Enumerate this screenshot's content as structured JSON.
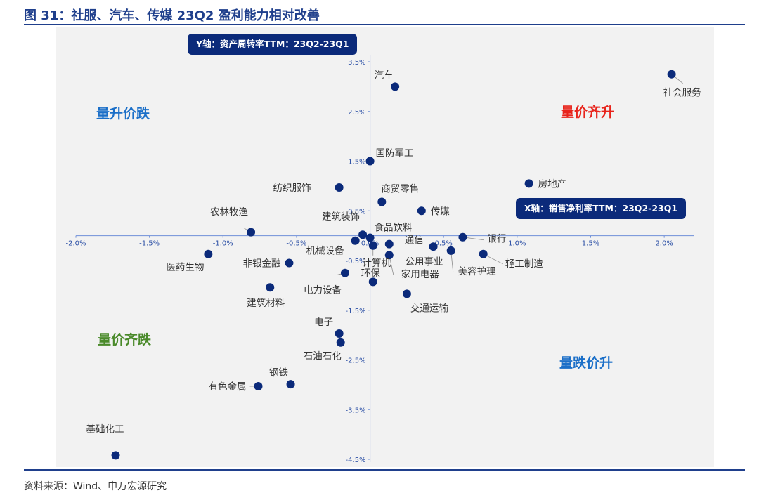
{
  "title": "图 31：社服、汽车、传媒 23Q2 盈利能力相对改善",
  "source": "资料来源：Wind、申万宏源研究",
  "colors": {
    "accent": "#1f3f8c",
    "point": "#0b2a7a",
    "axis": "#6f8fd8",
    "red": "#e8231b",
    "blue": "#1b6fc8",
    "green": "#4a8a2a"
  },
  "chart_data": {
    "type": "scatter",
    "title": "社服、汽车、传媒 23Q2 盈利能力相对改善",
    "xlabel": "X轴：销售净利率TTM：23Q2-23Q1",
    "ylabel": "Y轴：资产周转率TTM：23Q2-23Q1",
    "xlim": [
      -2.0,
      2.2
    ],
    "ylim": [
      -4.5,
      3.5
    ],
    "x_ticks": [
      "-2.0%",
      "-1.5%",
      "-1.0%",
      "-0.5%",
      "0.0%",
      "0.5%",
      "1.0%",
      "1.5%",
      "2.0%"
    ],
    "x_tick_values": [
      -2.0,
      -1.5,
      -1.0,
      -0.5,
      0.0,
      0.5,
      1.0,
      1.5,
      2.0
    ],
    "y_ticks": [
      "3.5%",
      "2.5%",
      "1.5%",
      "0.5%",
      "-0.5%",
      "-1.5%",
      "-2.5%",
      "-3.5%",
      "-4.5%"
    ],
    "y_tick_values": [
      3.5,
      2.5,
      1.5,
      0.5,
      -0.5,
      -1.5,
      -2.5,
      -3.5,
      -4.5
    ],
    "quadrants": [
      {
        "text": "量价齐升",
        "color": "#e8231b",
        "pos": "top-right"
      },
      {
        "text": "量升价跌",
        "color": "#1b6fc8",
        "pos": "top-left"
      },
      {
        "text": "量价齐跌",
        "color": "#4a8a2a",
        "pos": "bottom-left"
      },
      {
        "text": "量跌价升",
        "color": "#1b6fc8",
        "pos": "bottom-right"
      }
    ],
    "points": [
      {
        "name": "社会服务",
        "x": 2.05,
        "y": 3.25
      },
      {
        "name": "汽车",
        "x": 0.17,
        "y": 3.0
      },
      {
        "name": "国防军工",
        "x": 0.0,
        "y": 1.5
      },
      {
        "name": "房地产",
        "x": 1.08,
        "y": 1.05
      },
      {
        "name": "纺织服饰",
        "x": -0.21,
        "y": 0.97
      },
      {
        "name": "商贸零售",
        "x": 0.08,
        "y": 0.68
      },
      {
        "name": "传媒",
        "x": 0.35,
        "y": 0.5
      },
      {
        "name": "农林牧渔",
        "x": -0.81,
        "y": 0.07
      },
      {
        "name": "建筑装饰",
        "x": -0.05,
        "y": 0.02
      },
      {
        "name": "食品饮料",
        "x": 0.0,
        "y": -0.04
      },
      {
        "name": "银行",
        "x": 0.63,
        "y": -0.03
      },
      {
        "name": "机械设备",
        "x": -0.1,
        "y": -0.1
      },
      {
        "name": "通信",
        "x": 0.13,
        "y": -0.17
      },
      {
        "name": "公用事业",
        "x": 0.43,
        "y": -0.22
      },
      {
        "name": "美容护理",
        "x": 0.55,
        "y": -0.3
      },
      {
        "name": "医药生物",
        "x": -1.1,
        "y": -0.37
      },
      {
        "name": "轻工制造",
        "x": 0.77,
        "y": -0.37
      },
      {
        "name": "家用电器",
        "x": 0.13,
        "y": -0.39
      },
      {
        "name": "非银金融",
        "x": -0.55,
        "y": -0.55
      },
      {
        "name": "电力设备",
        "x": -0.17,
        "y": -0.75
      },
      {
        "name": "环保",
        "x": 0.02,
        "y": -0.93
      },
      {
        "name": "建筑材料",
        "x": -0.68,
        "y": -1.04
      },
      {
        "name": "交通运输",
        "x": 0.25,
        "y": -1.17
      },
      {
        "name": "计算机",
        "x": 0.02,
        "y": -0.2
      },
      {
        "name": "电子",
        "x": -0.21,
        "y": -1.97
      },
      {
        "name": "石油石化",
        "x": -0.2,
        "y": -2.15
      },
      {
        "name": "钢铁",
        "x": -0.54,
        "y": -2.99
      },
      {
        "name": "有色金属",
        "x": -0.76,
        "y": -3.03
      },
      {
        "name": "基础化工",
        "x": -1.73,
        "y": -4.42
      }
    ]
  }
}
